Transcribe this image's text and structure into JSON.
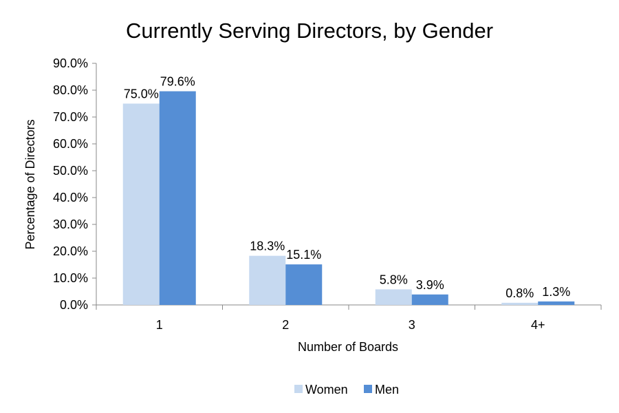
{
  "chart_data": {
    "type": "bar",
    "title": "Currently Serving Directors, by Gender",
    "xlabel": "Number of Boards",
    "ylabel": "Percentage of Directors",
    "categories": [
      "1",
      "2",
      "3",
      "4+"
    ],
    "series": [
      {
        "name": "Women",
        "values": [
          75.0,
          18.3,
          5.8,
          0.8
        ],
        "labels": [
          "75.0%",
          "18.3%",
          "5.8%",
          "0.8%"
        ],
        "color": "#c6d9f0"
      },
      {
        "name": "Men",
        "values": [
          79.6,
          15.1,
          3.9,
          1.3
        ],
        "labels": [
          "79.6%",
          "15.1%",
          "3.9%",
          "1.3%"
        ],
        "color": "#558ed5"
      }
    ],
    "ylim": [
      0,
      90
    ],
    "yticks": [
      0,
      10,
      20,
      30,
      40,
      50,
      60,
      70,
      80,
      90
    ],
    "ytick_labels": [
      "0.0%",
      "10.0%",
      "20.0%",
      "30.0%",
      "40.0%",
      "50.0%",
      "60.0%",
      "70.0%",
      "80.0%",
      "90.0%"
    ],
    "grid": false,
    "legend_position": "bottom-center"
  }
}
